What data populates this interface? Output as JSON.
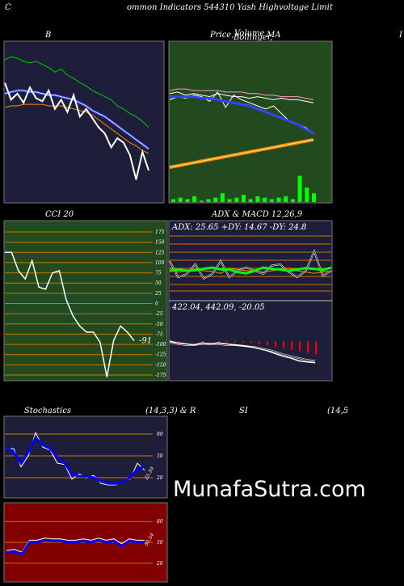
{
  "header": {
    "left_letter": "C",
    "title": "ommon  Indicators 544310  Yash Highvoltage  Limit"
  },
  "panels": {
    "bollinger": {
      "title": "B"
    },
    "price": {
      "title_a": "Price,",
      "title_b": "Volume",
      "title_c": "Bollinger,",
      "title_d": "MA",
      "right_letter": "I"
    },
    "cci": {
      "title": "CCI 20",
      "current_label": "-91",
      "ticks": [
        "175",
        "150",
        "125",
        "100",
        "75",
        "50",
        "25",
        "0",
        "-25",
        "-50",
        "-75",
        "-100",
        "-125",
        "-150",
        "-175"
      ]
    },
    "adx": {
      "title": "ADX  & MACD 12,26,9",
      "adx_text": "ADX: 25.65  +DY: 14.67  -DY: 24.8",
      "macd_text": "422.04,   442.09,   -20.05"
    },
    "stoch": {
      "title_a": "Stochastics",
      "title_b": "(14,3,3) & R",
      "title_c": "SI",
      "title_d": "(14,5",
      "ticks": [
        "80",
        "50",
        "20"
      ],
      "current_label": "25.59"
    },
    "rsi": {
      "ticks": [
        "80",
        "50",
        "20"
      ],
      "current_label": "50.54"
    }
  },
  "watermark": "MunafaSutra.com",
  "colors": {
    "navy": "#1e1e3a",
    "green": "#234a1e",
    "maroon": "#820000",
    "blue": "#0000ff",
    "lime": "#00ff00",
    "orange": "#ff8c00"
  },
  "chart_data": [
    {
      "type": "line",
      "name": "bollinger",
      "series": [
        {
          "values": [
            90,
            92,
            91,
            89,
            88,
            89,
            87,
            85,
            82,
            84,
            80,
            78,
            75,
            73,
            70,
            68,
            66,
            64,
            60,
            58,
            55,
            53,
            50,
            46
          ]
        },
        {
          "values": [
            68,
            69,
            70,
            70,
            69,
            69,
            68,
            67,
            67,
            66,
            65,
            64,
            62,
            60,
            57,
            55,
            53,
            50,
            47,
            44,
            41,
            38,
            35,
            32
          ]
        },
        {
          "values": [
            59,
            60,
            60,
            61,
            61,
            61,
            61,
            60,
            60,
            60,
            59,
            58,
            57,
            56,
            54,
            51,
            48,
            45,
            42,
            39,
            36,
            34,
            31,
            29
          ]
        },
        {
          "values": [
            75,
            64,
            68,
            62,
            72,
            65,
            63,
            70,
            58,
            64,
            56,
            67,
            53,
            58,
            52,
            46,
            42,
            33,
            39,
            36,
            28,
            12,
            30,
            18
          ]
        }
      ]
    },
    {
      "type": "line",
      "name": "price-ma",
      "series": [
        {
          "values": [
            70,
            71,
            71,
            70,
            70,
            70,
            70,
            69,
            69,
            69,
            68,
            68,
            67,
            67,
            66,
            66,
            66,
            65,
            64
          ]
        },
        {
          "values": [
            68,
            69,
            67,
            68,
            67,
            66,
            68,
            67,
            66,
            66,
            65,
            66,
            65,
            64,
            65,
            64,
            64,
            63,
            62
          ]
        },
        {
          "values": [
            64,
            66,
            65,
            67,
            66,
            63,
            69,
            59,
            67,
            64,
            62,
            60,
            58,
            60,
            55,
            50,
            48,
            46,
            42
          ]
        },
        {
          "values": [
            66,
            66,
            66,
            66,
            65,
            65,
            64,
            63,
            62,
            61,
            60,
            58,
            56,
            54,
            52,
            50,
            48,
            45,
            42
          ]
        },
        {
          "values": [
            20,
            21,
            22,
            23,
            24,
            25,
            26,
            27,
            28,
            29,
            30,
            31,
            32,
            33,
            34,
            35,
            36,
            37,
            38
          ]
        }
      ],
      "volume": [
        2,
        3,
        2,
        4,
        1,
        2,
        3,
        6,
        2,
        3,
        5,
        2,
        4,
        3,
        2,
        3,
        4,
        2,
        18,
        10,
        6
      ]
    },
    {
      "type": "line",
      "name": "cci",
      "series": [
        {
          "values": [
            125,
            125,
            80,
            60,
            105,
            40,
            35,
            75,
            80,
            10,
            -30,
            -55,
            -70,
            -70,
            -95,
            -180,
            -90,
            -55,
            -70,
            -91
          ]
        }
      ]
    },
    {
      "type": "line",
      "name": "adx",
      "series": [
        {
          "values": [
            40,
            42,
            40,
            41,
            43,
            45,
            42,
            42,
            38,
            36,
            40,
            45,
            43,
            42,
            40,
            42,
            44,
            43,
            41,
            45
          ]
        },
        {
          "values": [
            55,
            30,
            35,
            50,
            28,
            35,
            55,
            30,
            40,
            45,
            40,
            35,
            48,
            50,
            38,
            30,
            40,
            70,
            32,
            40
          ]
        },
        {
          "values": [
            45,
            38,
            40,
            42,
            40,
            39,
            36,
            44,
            42,
            40,
            40,
            38,
            40,
            42,
            44,
            40,
            38,
            36,
            38,
            40
          ]
        }
      ]
    },
    {
      "type": "line",
      "name": "macd",
      "series": [
        {
          "values": [
            30,
            28,
            27,
            26,
            28,
            27,
            28,
            27,
            26,
            25,
            24,
            22,
            20,
            17,
            14,
            12,
            9,
            8,
            7
          ]
        },
        {
          "values": [
            28,
            27,
            26,
            26,
            27,
            27,
            27,
            26,
            26,
            25,
            24,
            23,
            21,
            19,
            16,
            14,
            12,
            10,
            9
          ]
        }
      ],
      "histogram": [
        1,
        1,
        0,
        0,
        1,
        0,
        1,
        1,
        1,
        1,
        1,
        2,
        3,
        4,
        5,
        6,
        7,
        8,
        9
      ]
    },
    {
      "type": "line",
      "name": "stochastics",
      "series": [
        {
          "values": [
            60,
            60,
            35,
            50,
            82,
            62,
            58,
            40,
            38,
            18,
            25,
            20,
            23,
            12,
            10,
            10,
            15,
            18,
            40,
            30
          ]
        },
        {
          "values": [
            62,
            55,
            40,
            55,
            75,
            65,
            60,
            48,
            40,
            25,
            22,
            22,
            20,
            15,
            12,
            12,
            14,
            20,
            32,
            35
          ]
        }
      ]
    },
    {
      "type": "line",
      "name": "rsi",
      "series": [
        {
          "values": [
            35,
            37,
            33,
            50,
            50,
            53,
            52,
            52,
            50,
            50,
            52,
            50,
            53,
            50,
            52,
            45,
            52,
            50,
            50
          ]
        }
      ]
    }
  ]
}
